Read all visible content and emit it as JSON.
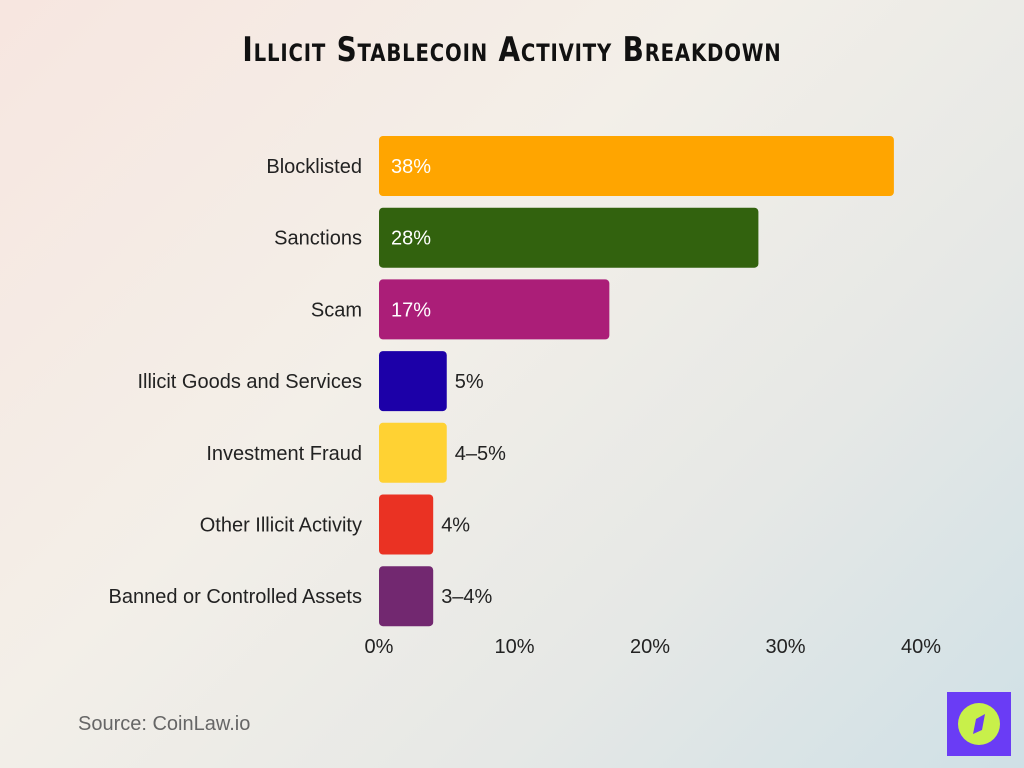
{
  "chart_data": {
    "type": "bar",
    "orientation": "horizontal",
    "title": "Illicit Stablecoin Activity Breakdown",
    "categories": [
      "Blocklisted",
      "Sanctions",
      "Scam",
      "Illicit Goods and Services",
      "Investment Fraud",
      "Other Illicit Activity",
      "Banned or Controlled Assets"
    ],
    "values": [
      38,
      28,
      17,
      5,
      5,
      4,
      4
    ],
    "data_labels": [
      "38%",
      "28%",
      "17%",
      "5%",
      "4–5%",
      "4%",
      "3–4%"
    ],
    "colors": [
      "#ffa500",
      "#32620e",
      "#ab1e78",
      "#1c00a8",
      "#ffd233",
      "#ea3223",
      "#722870"
    ],
    "xlim": [
      0,
      40
    ],
    "xticks": [
      0,
      10,
      20,
      30,
      40
    ],
    "xtick_labels": [
      "0%",
      "10%",
      "20%",
      "30%",
      "40%"
    ],
    "grid": false,
    "xlabel": "",
    "ylabel": ""
  },
  "source": "Source: CoinLaw.io",
  "logo_icon": "compass-icon"
}
